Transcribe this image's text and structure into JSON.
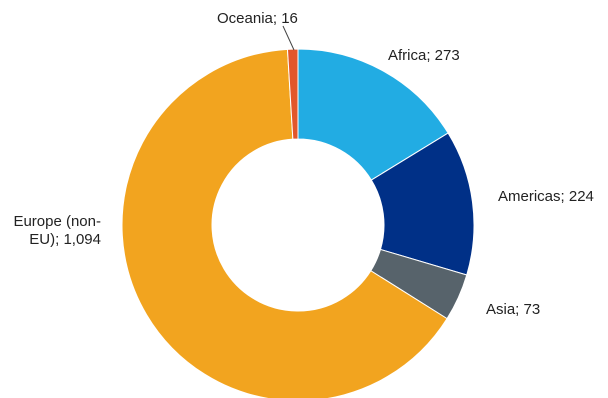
{
  "chart_data": {
    "type": "pie",
    "variant": "donut",
    "title": "",
    "legend": "none",
    "slices": [
      {
        "name": "Africa",
        "value": 273,
        "label_lines": [
          "Africa; 273"
        ],
        "color": "#22ACE3"
      },
      {
        "name": "Americas",
        "value": 224,
        "label_lines": [
          "Americas; 224"
        ],
        "color": "#003087"
      },
      {
        "name": "Asia",
        "value": 73,
        "label_lines": [
          "Asia; 73"
        ],
        "color": "#57636B"
      },
      {
        "name": "Europe (non-EU)",
        "value": 1094,
        "label_lines": [
          "Europe (non-",
          "EU); 1,094"
        ],
        "color": "#F2A41F"
      },
      {
        "name": "Oceania",
        "value": 16,
        "label_lines": [
          "Oceania; 16"
        ],
        "color": "#E2572B"
      }
    ]
  }
}
